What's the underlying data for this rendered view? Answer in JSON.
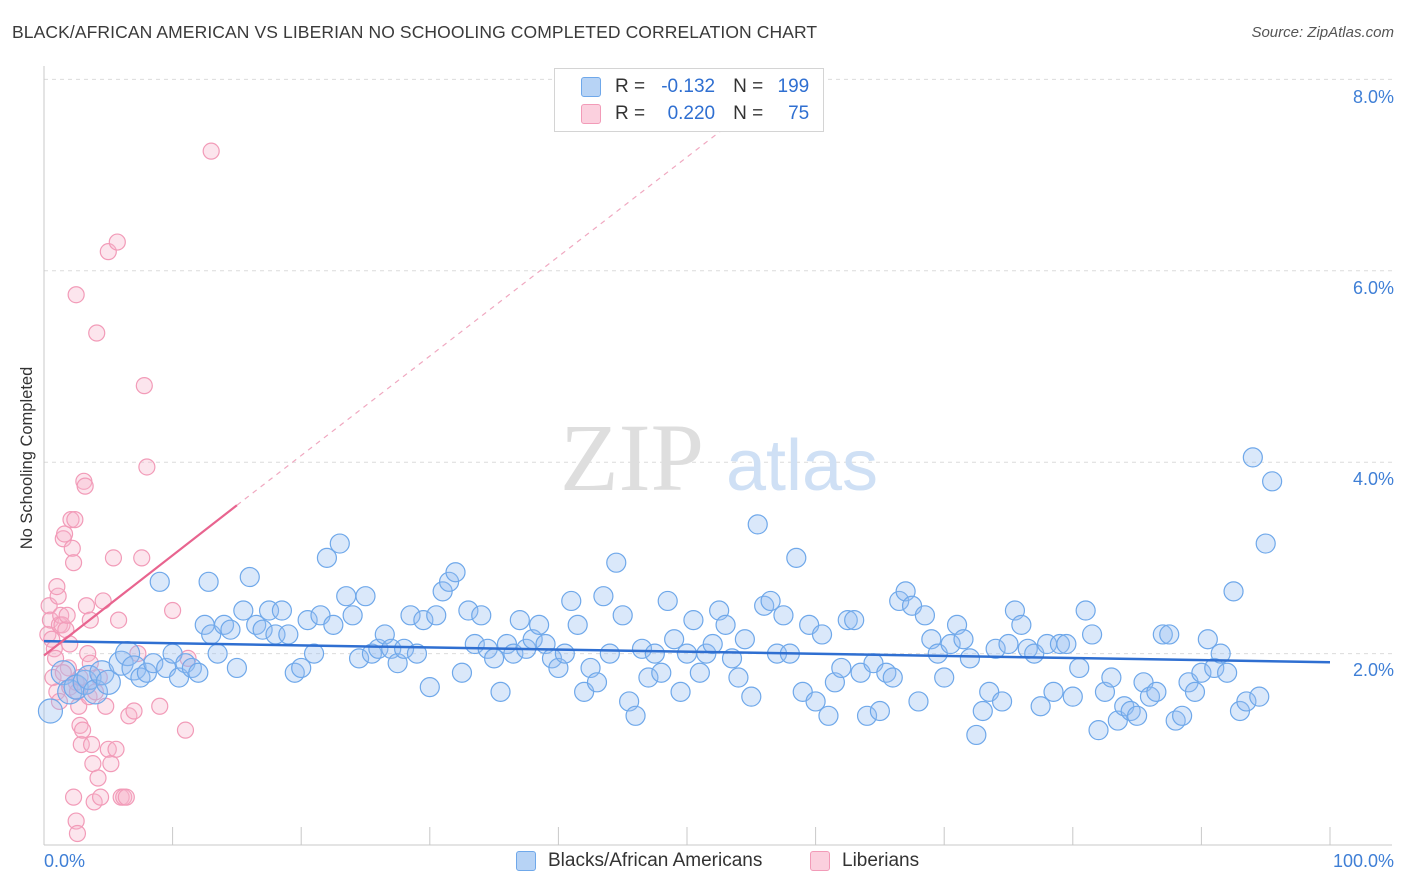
{
  "title": "BLACK/AFRICAN AMERICAN VS LIBERIAN NO SCHOOLING COMPLETED CORRELATION CHART",
  "source": "Source: ZipAtlas.com",
  "watermark": {
    "zip": "ZIP",
    "atlas": "atlas"
  },
  "legend": {
    "blue": {
      "r_label": "R =",
      "r_value": "-0.132",
      "n_label": "N =",
      "n_value": "199"
    },
    "pink": {
      "r_label": "R =",
      "r_value": "0.220",
      "n_label": "N =",
      "n_value": "75"
    }
  },
  "bottom_legend": {
    "blue": "Blacks/African Americans",
    "pink": "Liberians"
  },
  "colors": {
    "blue": "#6fa8ea",
    "blue_line": "#2f6fd1",
    "pink": "#f29bb8",
    "pink_line": "#e8648f",
    "grid": "#dcdcdc",
    "tick_label": "#3f7fd6"
  },
  "chart_data": {
    "type": "scatter",
    "xlabel": "",
    "ylabel": "No Schooling Completed",
    "xlim": [
      0,
      100
    ],
    "ylim": [
      0,
      8.0
    ],
    "x_tick_labels": [
      "0.0%",
      "100.0%"
    ],
    "y_tick_labels": [
      "2.0%",
      "4.0%",
      "6.0%",
      "8.0%"
    ],
    "y_ticks": [
      2.0,
      4.0,
      6.0,
      8.0
    ],
    "grid": true,
    "legend_position": "top-center",
    "series": [
      {
        "name": "Blacks/African Americans",
        "color": "#6fa8ea",
        "r": -0.132,
        "n": 199,
        "trend": {
          "x": [
            0,
            100
          ],
          "y": [
            2.13,
            1.91
          ]
        },
        "points": [
          [
            0.5,
            1.4
          ],
          [
            1.5,
            1.8
          ],
          [
            2.0,
            1.6
          ],
          [
            2.5,
            1.65
          ],
          [
            3.2,
            1.7
          ],
          [
            3.5,
            1.75
          ],
          [
            4.0,
            1.6
          ],
          [
            4.5,
            1.8
          ],
          [
            5.0,
            1.7
          ],
          [
            6.0,
            1.9
          ],
          [
            6.5,
            2.0
          ],
          [
            7.0,
            1.85
          ],
          [
            7.5,
            1.75
          ],
          [
            8.0,
            1.8
          ],
          [
            8.5,
            1.9
          ],
          [
            9.0,
            2.75
          ],
          [
            9.5,
            1.85
          ],
          [
            10.0,
            2.0
          ],
          [
            10.5,
            1.75
          ],
          [
            11.0,
            1.9
          ],
          [
            11.5,
            1.85
          ],
          [
            12.0,
            1.8
          ],
          [
            12.5,
            2.3
          ],
          [
            12.8,
            2.75
          ],
          [
            13.0,
            2.2
          ],
          [
            13.5,
            2.0
          ],
          [
            14.0,
            2.3
          ],
          [
            14.5,
            2.25
          ],
          [
            15.0,
            1.85
          ],
          [
            15.5,
            2.45
          ],
          [
            16.0,
            2.8
          ],
          [
            16.5,
            2.3
          ],
          [
            17.0,
            2.25
          ],
          [
            17.5,
            2.45
          ],
          [
            18.0,
            2.2
          ],
          [
            18.5,
            2.45
          ],
          [
            19.0,
            2.2
          ],
          [
            19.5,
            1.8
          ],
          [
            20.0,
            1.85
          ],
          [
            20.5,
            2.35
          ],
          [
            21.0,
            2.0
          ],
          [
            21.5,
            2.4
          ],
          [
            22.0,
            3.0
          ],
          [
            22.5,
            2.3
          ],
          [
            23.0,
            3.15
          ],
          [
            23.5,
            2.6
          ],
          [
            24.0,
            2.4
          ],
          [
            24.5,
            1.95
          ],
          [
            25.0,
            2.6
          ],
          [
            25.5,
            2.0
          ],
          [
            26.0,
            2.05
          ],
          [
            26.5,
            2.2
          ],
          [
            27.0,
            2.05
          ],
          [
            27.5,
            1.9
          ],
          [
            28.0,
            2.05
          ],
          [
            28.5,
            2.4
          ],
          [
            29.0,
            2.0
          ],
          [
            29.5,
            2.35
          ],
          [
            30.0,
            1.65
          ],
          [
            30.5,
            2.4
          ],
          [
            31.0,
            2.65
          ],
          [
            31.5,
            2.75
          ],
          [
            32.0,
            2.85
          ],
          [
            32.5,
            1.8
          ],
          [
            33.0,
            2.45
          ],
          [
            33.5,
            2.1
          ],
          [
            34.0,
            2.4
          ],
          [
            34.5,
            2.05
          ],
          [
            35.0,
            1.95
          ],
          [
            35.5,
            1.6
          ],
          [
            36.0,
            2.1
          ],
          [
            36.5,
            2.0
          ],
          [
            37.0,
            2.35
          ],
          [
            37.5,
            2.05
          ],
          [
            38.0,
            2.15
          ],
          [
            38.5,
            2.3
          ],
          [
            39.0,
            2.1
          ],
          [
            39.5,
            1.95
          ],
          [
            40.0,
            1.85
          ],
          [
            40.5,
            2.0
          ],
          [
            41.0,
            2.55
          ],
          [
            41.5,
            2.3
          ],
          [
            42.0,
            1.6
          ],
          [
            42.5,
            1.85
          ],
          [
            43.0,
            1.7
          ],
          [
            43.5,
            2.6
          ],
          [
            44.0,
            2.0
          ],
          [
            44.5,
            2.95
          ],
          [
            45.0,
            2.4
          ],
          [
            45.5,
            1.5
          ],
          [
            46.0,
            1.35
          ],
          [
            46.5,
            2.05
          ],
          [
            47.0,
            1.75
          ],
          [
            47.5,
            2.0
          ],
          [
            48.0,
            1.8
          ],
          [
            48.5,
            2.55
          ],
          [
            49.0,
            2.15
          ],
          [
            49.5,
            1.6
          ],
          [
            50.0,
            2.0
          ],
          [
            50.5,
            2.35
          ],
          [
            51.0,
            1.8
          ],
          [
            51.5,
            2.0
          ],
          [
            52.0,
            2.1
          ],
          [
            52.5,
            2.45
          ],
          [
            53.0,
            2.3
          ],
          [
            53.5,
            1.95
          ],
          [
            54.0,
            1.75
          ],
          [
            54.5,
            2.15
          ],
          [
            55.0,
            1.55
          ],
          [
            55.5,
            3.35
          ],
          [
            56.0,
            2.5
          ],
          [
            56.5,
            2.55
          ],
          [
            57.0,
            2.0
          ],
          [
            57.5,
            2.4
          ],
          [
            58.0,
            2.0
          ],
          [
            58.5,
            3.0
          ],
          [
            59.0,
            1.6
          ],
          [
            59.5,
            2.3
          ],
          [
            60.0,
            1.5
          ],
          [
            60.5,
            2.2
          ],
          [
            61.0,
            1.35
          ],
          [
            61.5,
            1.7
          ],
          [
            62.0,
            1.85
          ],
          [
            62.5,
            2.35
          ],
          [
            63.0,
            2.35
          ],
          [
            63.5,
            1.8
          ],
          [
            64.0,
            1.35
          ],
          [
            64.5,
            1.9
          ],
          [
            65.0,
            1.4
          ],
          [
            65.5,
            1.8
          ],
          [
            66.0,
            1.75
          ],
          [
            66.5,
            2.55
          ],
          [
            67.0,
            2.65
          ],
          [
            67.5,
            2.5
          ],
          [
            68.0,
            1.5
          ],
          [
            68.5,
            2.4
          ],
          [
            69.0,
            2.15
          ],
          [
            69.5,
            2.0
          ],
          [
            70.0,
            1.75
          ],
          [
            70.5,
            2.1
          ],
          [
            71.0,
            2.3
          ],
          [
            71.5,
            2.15
          ],
          [
            72.0,
            1.95
          ],
          [
            72.5,
            1.15
          ],
          [
            73.0,
            1.4
          ],
          [
            73.5,
            1.6
          ],
          [
            74.0,
            2.05
          ],
          [
            74.5,
            1.5
          ],
          [
            75.0,
            2.1
          ],
          [
            75.5,
            2.45
          ],
          [
            76.0,
            2.3
          ],
          [
            76.5,
            2.05
          ],
          [
            77.0,
            2.0
          ],
          [
            77.5,
            1.45
          ],
          [
            78.0,
            2.1
          ],
          [
            78.5,
            1.6
          ],
          [
            79.0,
            2.1
          ],
          [
            79.5,
            2.1
          ],
          [
            80.0,
            1.55
          ],
          [
            80.5,
            1.85
          ],
          [
            81.0,
            2.45
          ],
          [
            81.5,
            2.2
          ],
          [
            82.0,
            1.2
          ],
          [
            82.5,
            1.6
          ],
          [
            83.0,
            1.75
          ],
          [
            83.5,
            1.3
          ],
          [
            84.0,
            1.45
          ],
          [
            84.5,
            1.4
          ],
          [
            85.0,
            1.35
          ],
          [
            85.5,
            1.7
          ],
          [
            86.0,
            1.55
          ],
          [
            86.5,
            1.6
          ],
          [
            87.0,
            2.2
          ],
          [
            87.5,
            2.2
          ],
          [
            88.0,
            1.3
          ],
          [
            88.5,
            1.35
          ],
          [
            89.0,
            1.7
          ],
          [
            89.5,
            1.6
          ],
          [
            90.0,
            1.8
          ],
          [
            90.5,
            2.15
          ],
          [
            91.0,
            1.85
          ],
          [
            91.5,
            2.0
          ],
          [
            92.0,
            1.8
          ],
          [
            92.5,
            2.65
          ],
          [
            93.0,
            1.4
          ],
          [
            93.5,
            1.5
          ],
          [
            94.0,
            4.05
          ],
          [
            94.5,
            1.55
          ],
          [
            95.0,
            3.15
          ],
          [
            95.5,
            3.8
          ]
        ]
      },
      {
        "name": "Liberians",
        "color": "#f29bb8",
        "r": 0.22,
        "n": 75,
        "trend": {
          "x": [
            0,
            15
          ],
          "y": [
            1.98,
            3.55
          ]
        },
        "trend_ext": {
          "x": [
            15,
            53
          ],
          "y": [
            3.55,
            7.5
          ]
        },
        "points": [
          [
            0.3,
            2.2
          ],
          [
            0.4,
            2.5
          ],
          [
            0.5,
            2.35
          ],
          [
            0.6,
            2.15
          ],
          [
            0.7,
            1.75
          ],
          [
            0.8,
            2.05
          ],
          [
            0.9,
            1.95
          ],
          [
            1.0,
            1.6
          ],
          [
            1.1,
            2.6
          ],
          [
            1.2,
            2.3
          ],
          [
            1.3,
            2.4
          ],
          [
            1.4,
            2.3
          ],
          [
            1.5,
            3.2
          ],
          [
            1.6,
            3.25
          ],
          [
            1.7,
            2.25
          ],
          [
            1.8,
            2.4
          ],
          [
            1.9,
            1.85
          ],
          [
            2.0,
            1.65
          ],
          [
            2.1,
            3.4
          ],
          [
            2.2,
            3.1
          ],
          [
            2.3,
            2.95
          ],
          [
            2.4,
            3.4
          ],
          [
            2.5,
            1.7
          ],
          [
            2.6,
            1.6
          ],
          [
            2.7,
            1.45
          ],
          [
            2.8,
            1.25
          ],
          [
            2.9,
            1.05
          ],
          [
            3.0,
            1.2
          ],
          [
            3.1,
            3.8
          ],
          [
            3.2,
            3.75
          ],
          [
            3.3,
            2.5
          ],
          [
            3.4,
            2.0
          ],
          [
            3.5,
            1.55
          ],
          [
            3.6,
            1.9
          ],
          [
            3.7,
            1.05
          ],
          [
            3.8,
            0.85
          ],
          [
            3.9,
            0.45
          ],
          [
            4.0,
            1.6
          ],
          [
            4.2,
            0.7
          ],
          [
            4.4,
            0.5
          ],
          [
            4.6,
            2.55
          ],
          [
            4.8,
            1.45
          ],
          [
            5.0,
            1.0
          ],
          [
            5.2,
            0.85
          ],
          [
            5.4,
            3.0
          ],
          [
            5.6,
            1.0
          ],
          [
            5.8,
            2.35
          ],
          [
            6.0,
            0.5
          ],
          [
            6.2,
            0.5
          ],
          [
            6.4,
            0.5
          ],
          [
            2.5,
            0.25
          ],
          [
            2.6,
            0.12
          ],
          [
            2.3,
            0.5
          ],
          [
            4.1,
            5.35
          ],
          [
            2.5,
            5.75
          ],
          [
            5.0,
            6.2
          ],
          [
            5.7,
            6.3
          ],
          [
            6.6,
            1.35
          ],
          [
            7.0,
            1.4
          ],
          [
            7.3,
            2.0
          ],
          [
            7.6,
            3.0
          ],
          [
            8.0,
            3.95
          ],
          [
            7.8,
            4.8
          ],
          [
            9.0,
            1.45
          ],
          [
            10.0,
            2.45
          ],
          [
            11.0,
            1.2
          ],
          [
            11.2,
            1.95
          ],
          [
            13.0,
            7.25
          ],
          [
            1.0,
            2.7
          ],
          [
            1.5,
            1.8
          ],
          [
            2.8,
            1.75
          ],
          [
            3.6,
            2.35
          ],
          [
            4.3,
            1.75
          ],
          [
            1.2,
            1.5
          ],
          [
            2.0,
            2.1
          ]
        ]
      }
    ]
  }
}
